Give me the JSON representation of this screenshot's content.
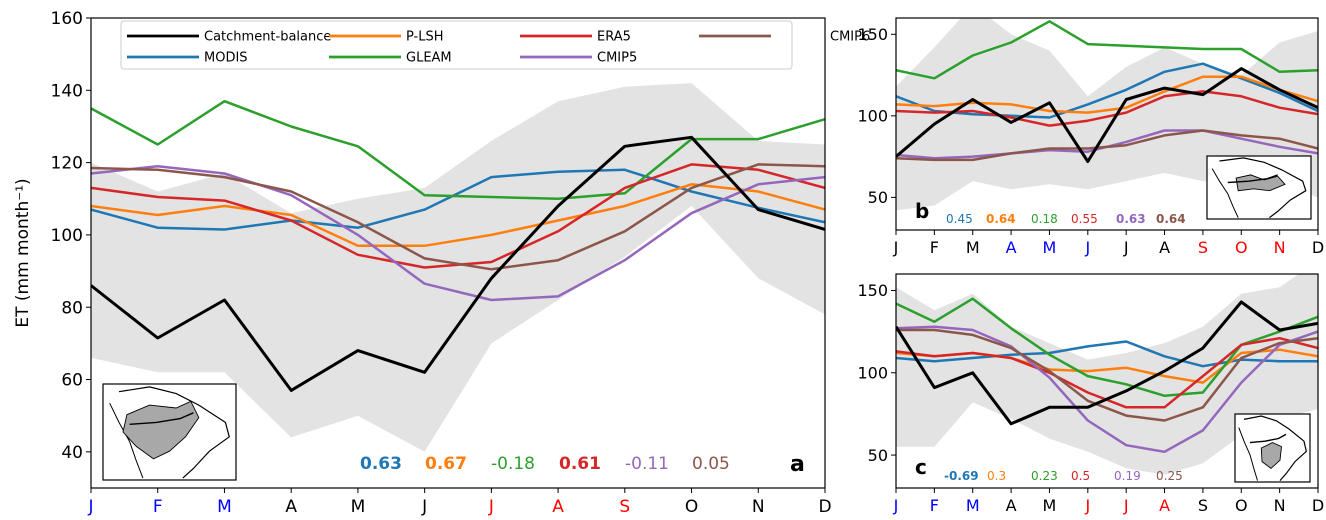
{
  "colors": {
    "Catchment-balance": "#000000",
    "MODIS": "#1f77b4",
    "P-LSH": "#ff7f0e",
    "GLEAM": "#2ca02c",
    "ERA5": "#d62728",
    "CMIP5": "#9467bd",
    "CMIP6": "#8c564b",
    "band": "#e3e3e3",
    "month_black": "#000000",
    "month_blue": "#0000ff",
    "month_red": "#ff0000"
  },
  "legend": [
    "Catchment-balance",
    "MODIS",
    "P-LSH",
    "GLEAM",
    "ERA5",
    "CMIP5",
    "CMIP6"
  ],
  "chart_data": [
    {
      "panel": "a",
      "type": "line",
      "ylabel": "ET (mm month⁻¹)",
      "ylim": [
        30,
        160
      ],
      "yticks": [
        40,
        60,
        80,
        100,
        120,
        140,
        160
      ],
      "legend_position": "top",
      "categories": [
        "J",
        "F",
        "M",
        "A",
        "M",
        "J",
        "J",
        "A",
        "S",
        "O",
        "N",
        "D"
      ],
      "category_colors": [
        "blue",
        "blue",
        "blue",
        "black",
        "black",
        "black",
        "red",
        "red",
        "red",
        "black",
        "black",
        "black"
      ],
      "series": [
        {
          "name": "Catchment-balance",
          "values": [
            86,
            71.5,
            82,
            57,
            68,
            62,
            88,
            108,
            124.5,
            127,
            107,
            101.5
          ]
        },
        {
          "name": "MODIS",
          "values": [
            107,
            102,
            101.5,
            104,
            102,
            107,
            116,
            117.5,
            118,
            112,
            107.5,
            103.5
          ]
        },
        {
          "name": "P-LSH",
          "values": [
            108,
            105.5,
            108,
            105.5,
            97,
            97,
            100,
            104,
            108,
            114,
            112,
            107
          ]
        },
        {
          "name": "GLEAM",
          "values": [
            135,
            125,
            137,
            130,
            124.5,
            111,
            110.5,
            110,
            111.5,
            126.5,
            126.5,
            132
          ]
        },
        {
          "name": "ERA5",
          "values": [
            113,
            110.5,
            109.5,
            104,
            94.5,
            91,
            92.5,
            101,
            113,
            119.5,
            118,
            113
          ]
        },
        {
          "name": "CMIP5",
          "values": [
            117,
            119,
            117,
            111,
            100,
            86.5,
            82,
            83,
            93,
            106,
            114,
            116
          ]
        },
        {
          "name": "CMIP6",
          "values": [
            118.5,
            118,
            116,
            112,
            103.5,
            93.5,
            90.5,
            93,
            101,
            113,
            119.5,
            119
          ]
        }
      ],
      "band_upper": [
        120,
        112,
        117,
        106,
        110,
        113,
        126,
        137,
        141,
        142,
        126,
        125
      ],
      "band_lower": [
        66,
        62,
        62,
        44,
        50,
        40,
        70,
        82,
        94,
        108,
        88,
        78
      ],
      "correlations": [
        {
          "value": "0.63",
          "series": "MODIS",
          "bold": true
        },
        {
          "value": "0.67",
          "series": "P-LSH",
          "bold": true
        },
        {
          "value": "-0.18",
          "series": "GLEAM",
          "bold": false
        },
        {
          "value": "0.61",
          "series": "ERA5",
          "bold": true
        },
        {
          "value": "-0.11",
          "series": "CMIP5",
          "bold": false
        },
        {
          "value": "0.05",
          "series": "CMIP6",
          "bold": false
        }
      ],
      "label": "a"
    },
    {
      "panel": "b",
      "type": "line",
      "ylim": [
        30,
        160
      ],
      "yticks": [
        50,
        100,
        150
      ],
      "categories": [
        "J",
        "F",
        "M",
        "A",
        "M",
        "J",
        "J",
        "A",
        "S",
        "O",
        "N",
        "D"
      ],
      "category_colors": [
        "black",
        "black",
        "black",
        "blue",
        "blue",
        "blue",
        "black",
        "black",
        "red",
        "red",
        "red",
        "black"
      ],
      "series": [
        {
          "name": "Catchment-balance",
          "values": [
            75,
            95,
            110,
            96,
            108,
            72,
            110,
            117,
            113,
            129,
            116,
            105
          ]
        },
        {
          "name": "MODIS",
          "values": [
            112,
            103,
            101,
            100,
            99,
            107,
            116,
            127,
            132,
            123,
            114,
            103
          ]
        },
        {
          "name": "P-LSH",
          "values": [
            107,
            106,
            108,
            107,
            103,
            102,
            105,
            115,
            124,
            124,
            116,
            109
          ]
        },
        {
          "name": "GLEAM",
          "values": [
            128,
            123,
            137,
            145,
            158,
            144,
            143,
            142,
            141,
            141,
            127,
            128
          ]
        },
        {
          "name": "ERA5",
          "values": [
            103,
            102,
            103,
            99,
            94,
            97,
            102,
            112,
            115,
            112,
            105,
            101
          ]
        },
        {
          "name": "CMIP5",
          "values": [
            76,
            74,
            75,
            77,
            79,
            78,
            84,
            91,
            91,
            86,
            81,
            77
          ]
        },
        {
          "name": "CMIP6",
          "values": [
            74,
            73,
            73,
            77,
            80,
            80,
            82,
            88,
            91,
            88,
            86,
            80
          ]
        }
      ],
      "band_upper": [
        118,
        142,
        168,
        150,
        140,
        112,
        130,
        142,
        132,
        125,
        145,
        152
      ],
      "band_lower": [
        42,
        45,
        60,
        55,
        58,
        55,
        60,
        65,
        60,
        58,
        58,
        50
      ],
      "correlations": [
        {
          "value": "0.45",
          "series": "MODIS",
          "bold": false
        },
        {
          "value": "0.64",
          "series": "P-LSH",
          "bold": true
        },
        {
          "value": "0.18",
          "series": "GLEAM",
          "bold": false
        },
        {
          "value": "0.55",
          "series": "ERA5",
          "bold": false
        },
        {
          "value": "0.63",
          "series": "CMIP5",
          "bold": true
        },
        {
          "value": "0.64",
          "series": "CMIP6",
          "bold": true
        }
      ],
      "label": "b"
    },
    {
      "panel": "c",
      "type": "line",
      "ylim": [
        30,
        160
      ],
      "yticks": [
        50,
        100,
        150
      ],
      "categories": [
        "J",
        "F",
        "M",
        "A",
        "M",
        "J",
        "J",
        "A",
        "S",
        "O",
        "N",
        "D"
      ],
      "category_colors": [
        "blue",
        "blue",
        "blue",
        "black",
        "black",
        "red",
        "red",
        "red",
        "black",
        "black",
        "black",
        "black"
      ],
      "series": [
        {
          "name": "Catchment-balance",
          "values": [
            128,
            91,
            100,
            69,
            79,
            79,
            89,
            101,
            115,
            143,
            126,
            130
          ]
        },
        {
          "name": "MODIS",
          "values": [
            109,
            107,
            109,
            111,
            112,
            116,
            119,
            110,
            104,
            108,
            107,
            107
          ]
        },
        {
          "name": "P-LSH",
          "values": [
            112,
            110,
            112,
            109,
            102,
            101,
            103,
            98,
            94,
            112,
            114,
            110
          ]
        },
        {
          "name": "GLEAM",
          "values": [
            142,
            131,
            145,
            127,
            111,
            98,
            93,
            86,
            88,
            117,
            125,
            134
          ]
        },
        {
          "name": "ERA5",
          "values": [
            113,
            110,
            112,
            109,
            100,
            88,
            79,
            79,
            98,
            117,
            121,
            115
          ]
        },
        {
          "name": "CMIP5",
          "values": [
            127,
            128,
            126,
            116,
            97,
            71,
            56,
            52,
            65,
            94,
            117,
            125
          ]
        },
        {
          "name": "CMIP6",
          "values": [
            126,
            126,
            123,
            115,
            101,
            83,
            74,
            71,
            79,
            109,
            118,
            121
          ]
        }
      ],
      "band_upper": [
        152,
        138,
        148,
        128,
        118,
        108,
        112,
        118,
        128,
        148,
        152,
        168
      ],
      "band_lower": [
        55,
        55,
        82,
        72,
        60,
        52,
        42,
        38,
        45,
        62,
        72,
        78
      ],
      "correlations": [
        {
          "value": "-0.69",
          "series": "MODIS",
          "bold": true
        },
        {
          "value": "0.3",
          "series": "P-LSH",
          "bold": false
        },
        {
          "value": "0.23",
          "series": "GLEAM",
          "bold": false
        },
        {
          "value": "0.5",
          "series": "ERA5",
          "bold": false
        },
        {
          "value": "0.19",
          "series": "CMIP5",
          "bold": false
        },
        {
          "value": "0.25",
          "series": "CMIP6",
          "bold": false
        }
      ],
      "label": "c"
    }
  ]
}
